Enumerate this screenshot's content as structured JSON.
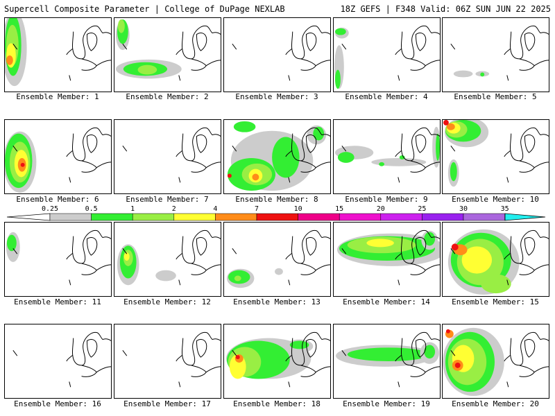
{
  "header": {
    "left": "Supercell Composite Parameter | College of DuPage NEXLAB",
    "right": "18Z GEFS | F348 Valid: 06Z SUN JUN 22 2025"
  },
  "colors": {
    "c025": "#cccccc",
    "c05": "#33ee33",
    "c1": "#99ee44",
    "c2": "#ffff33",
    "c4": "#ff8c1a",
    "c7": "#ee1111",
    "c10": "#ee0088",
    "c15": "#ee11cc",
    "c20": "#cc22ee",
    "c25": "#9922ee",
    "c30": "#aa66dd",
    "c35": "#22eeee"
  },
  "scale": {
    "ticks": [
      "0.25",
      "0.5",
      "1",
      "2",
      "4",
      "7",
      "10",
      "15",
      "20",
      "25",
      "30",
      "35"
    ]
  },
  "panels": [
    {
      "label": "Ensemble Member: 1"
    },
    {
      "label": "Ensemble Member: 2"
    },
    {
      "label": "Ensemble Member: 3"
    },
    {
      "label": "Ensemble Member: 4"
    },
    {
      "label": "Ensemble Member: 5"
    },
    {
      "label": "Ensemble Member: 6"
    },
    {
      "label": "Ensemble Member: 7"
    },
    {
      "label": "Ensemble Member: 8"
    },
    {
      "label": "Ensemble Member: 9"
    },
    {
      "label": "Ensemble Member: 10"
    },
    {
      "label": "Ensemble Member: 11"
    },
    {
      "label": "Ensemble Member: 12"
    },
    {
      "label": "Ensemble Member: 13"
    },
    {
      "label": "Ensemble Member: 14"
    },
    {
      "label": "Ensemble Member: 15"
    },
    {
      "label": "Ensemble Member: 16"
    },
    {
      "label": "Ensemble Member: 17"
    },
    {
      "label": "Ensemble Member: 18"
    },
    {
      "label": "Ensemble Member: 19"
    },
    {
      "label": "Ensemble Member: 20"
    }
  ]
}
